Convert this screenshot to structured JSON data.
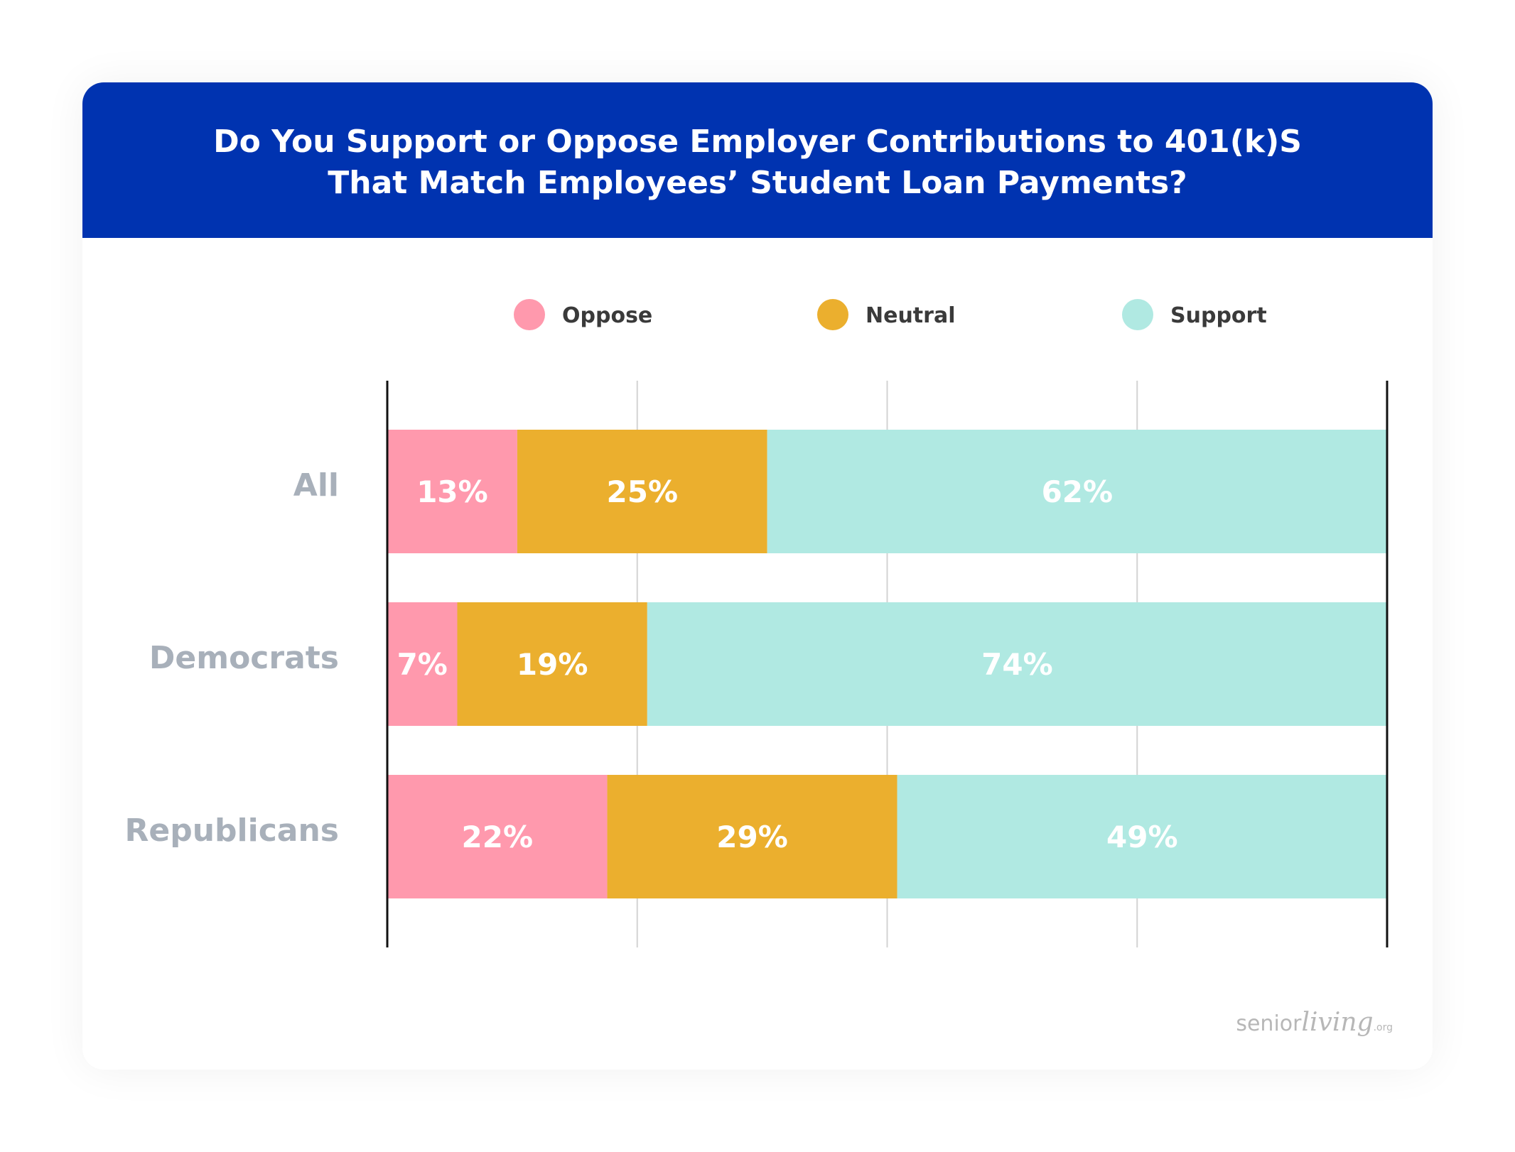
{
  "header": {
    "title": "Do You Support or Oppose Employer Contributions to 401(k)S\nThat Match Employees’ Student Loan Payments?",
    "background": "#0033b0"
  },
  "brand": {
    "part1": "senior",
    "part2": "living",
    "part3": ".org"
  },
  "chart_data": {
    "type": "bar",
    "orientation": "horizontal",
    "stacked": true,
    "title": "Do You Support or Oppose Employer Contributions to 401(k)S That Match Employees’ Student Loan Payments?",
    "categories": [
      "All",
      "Democrats",
      "Republicans"
    ],
    "series": [
      {
        "name": "Oppose",
        "color": "#ff99ad",
        "values": [
          13,
          7,
          22
        ],
        "labels": [
          "13%",
          "7%",
          "22%"
        ]
      },
      {
        "name": "Neutral",
        "color": "#ebaf2e",
        "values": [
          25,
          19,
          29
        ],
        "labels": [
          "25%",
          "19%",
          "29%"
        ]
      },
      {
        "name": "Support",
        "color": "#b0e9e2",
        "values": [
          62,
          74,
          49
        ],
        "labels": [
          "62%",
          "74%",
          "49%"
        ]
      }
    ],
    "xlim": [
      0,
      100
    ],
    "grid": true,
    "legend_position": "top"
  }
}
